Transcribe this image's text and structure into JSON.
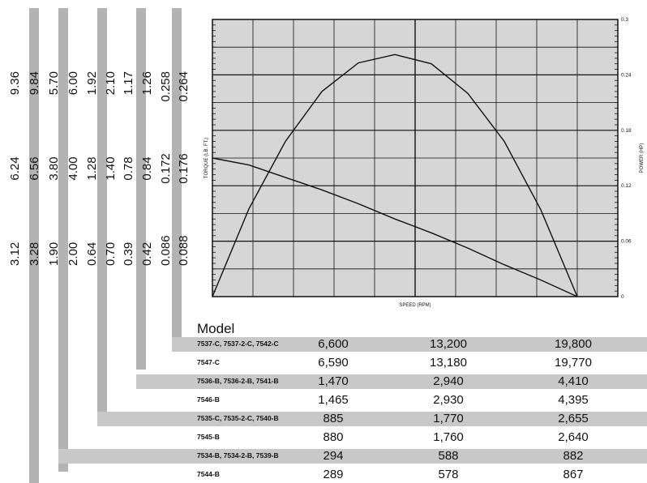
{
  "chart_data": {
    "type": "line",
    "xlabel": "SPEED (RPM)",
    "ylabel": "TORQUE (LB. FT.)",
    "y2label": "POWER (HP)",
    "y2_ticks": [
      "0.3",
      "0.24",
      "0.18",
      "0.12",
      "0.06",
      "0"
    ],
    "grid": true,
    "series": [
      {
        "id": "power",
        "axis": "right",
        "x": [
          0,
          0.1,
          0.2,
          0.3,
          0.4,
          0.5,
          0.6,
          0.7,
          0.8,
          0.9,
          1.0
        ],
        "y": [
          0,
          0.095,
          0.168,
          0.222,
          0.253,
          0.262,
          0.252,
          0.22,
          0.168,
          0.094,
          0
        ]
      },
      {
        "id": "torque",
        "axis": "left",
        "x": [
          0,
          0.1,
          0.2,
          0.3,
          0.4,
          0.5,
          0.6,
          0.7,
          0.8,
          0.9,
          1.0
        ],
        "y": [
          1.0,
          0.95,
          0.86,
          0.77,
          0.67,
          0.56,
          0.46,
          0.35,
          0.23,
          0.12,
          0
        ]
      }
    ]
  },
  "left_columns": [
    [
      "3.12",
      "6.24",
      "9.36"
    ],
    [
      "3.28",
      "6.56",
      "9.84"
    ],
    [
      "1.90",
      "3.80",
      "5.70"
    ],
    [
      "2.00",
      "4.00",
      "6.00"
    ],
    [
      "0.64",
      "1.28",
      "1.92"
    ],
    [
      "0.70",
      "1.40",
      "2.10"
    ],
    [
      "0.39",
      "0.78",
      "1.17"
    ],
    [
      "0.42",
      "0.84",
      "1.26"
    ],
    [
      "0.086",
      "0.172",
      "0.258"
    ],
    [
      "0.088",
      "0.176",
      "0.264"
    ]
  ],
  "table": {
    "header": "Model",
    "rows": [
      {
        "model": "7537-C, 7537-2-C, 7542-C",
        "values": [
          "6,600",
          "13,200",
          "19,800"
        ],
        "shaded": true
      },
      {
        "model": "7547-C",
        "values": [
          "6,590",
          "13,180",
          "19,770"
        ],
        "shaded": false
      },
      {
        "model": "7536-B, 7536-2-B, 7541-B",
        "values": [
          "1,470",
          "2,940",
          "4,410"
        ],
        "shaded": true
      },
      {
        "model": "7546-B",
        "values": [
          "1,465",
          "2,930",
          "4,395"
        ],
        "shaded": false
      },
      {
        "model": "7535-C, 7535-2-C, 7540-B",
        "values": [
          "885",
          "1,770",
          "2,655"
        ],
        "shaded": true
      },
      {
        "model": "7545-B",
        "values": [
          "880",
          "1,760",
          "2,640"
        ],
        "shaded": false
      },
      {
        "model": "7534-B, 7534-2-B, 7539-B",
        "values": [
          "294",
          "588",
          "882"
        ],
        "shaded": true
      },
      {
        "model": "7544-B",
        "values": [
          "289",
          "578",
          "867"
        ],
        "shaded": false
      }
    ]
  }
}
